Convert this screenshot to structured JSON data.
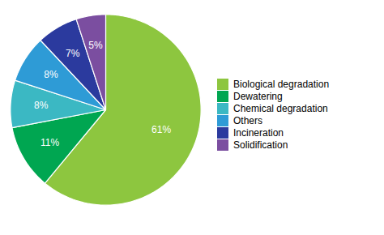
{
  "chart_data": {
    "type": "pie",
    "categories": [
      "Biological degradation",
      "Dewatering",
      "Chemical degradation",
      "Others",
      "Incineration",
      "Solidification"
    ],
    "values": [
      61,
      11,
      8,
      8,
      7,
      5
    ],
    "value_labels": [
      "61%",
      "11%",
      "8%",
      "8%",
      "7%",
      "5%"
    ],
    "colors": [
      "#8DC63F",
      "#00A651",
      "#3BB8C3",
      "#2E9BD6",
      "#2B3A9E",
      "#7B4EA0"
    ],
    "data_labels": true,
    "legend": "right"
  }
}
